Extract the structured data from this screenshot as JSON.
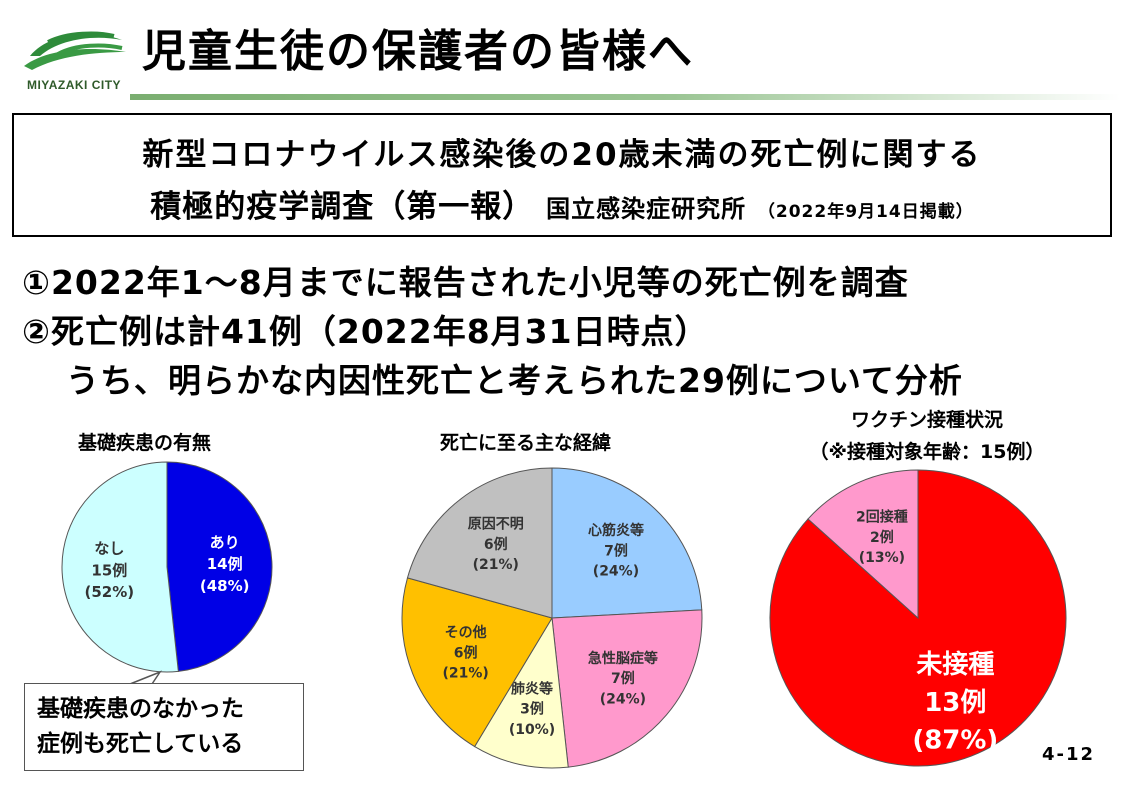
{
  "header": {
    "logo_text": "MIYAZAKI CITY",
    "title": "児童生徒の保護者の皆様へ"
  },
  "source_box": {
    "line1": "新型コロナウイルス感染後の20歳未満の死亡例に関する",
    "line2_main": "積極的疫学調査（第一報）",
    "line2_org": "国立感染症研究所",
    "line2_date": "（2022年9月14日掲載）"
  },
  "bullets": {
    "b1": "①2022年1～8月までに報告された小児等の死亡例を調査",
    "b2": "②死亡例は計41例（2022年8月31日時点）",
    "b3": "うち、明らかな内因性死亡と考えられた29例について分析"
  },
  "callout": {
    "line1": "基礎疾患のなかった",
    "line2": "症例も死亡している"
  },
  "page_number": "4-12",
  "chart_data": [
    {
      "type": "pie",
      "title": "基礎疾患の有無",
      "start": "top",
      "slices": [
        {
          "label": "あり",
          "count": "14例",
          "pct": "(48%)",
          "value": 14,
          "color": "#0000e6",
          "text_color": "#ffffff"
        },
        {
          "label": "なし",
          "count": "15例",
          "pct": "(52%)",
          "value": 15,
          "color": "#ccffff",
          "text_color": "#333333"
        }
      ]
    },
    {
      "type": "pie",
      "title": "死亡に至る主な経緯",
      "start": "top",
      "slices": [
        {
          "label": "心筋炎等",
          "count": "7例",
          "pct": "(24%)",
          "value": 7,
          "color": "#99ccff",
          "text_color": "#333333"
        },
        {
          "label": "急性脳症等",
          "count": "7例",
          "pct": "(24%)",
          "value": 7,
          "color": "#ff99cc",
          "text_color": "#333333"
        },
        {
          "label": "肺炎等",
          "count": "3例",
          "pct": "(10%)",
          "value": 3,
          "color": "#ffffcc",
          "text_color": "#333333"
        },
        {
          "label": "その他",
          "count": "6例",
          "pct": "(21%)",
          "value": 6,
          "color": "#ffc000",
          "text_color": "#333333"
        },
        {
          "label": "原因不明",
          "count": "6例",
          "pct": "(21%)",
          "value": 6,
          "color": "#c0c0c0",
          "text_color": "#333333"
        }
      ]
    },
    {
      "type": "pie",
      "title": "ワクチン接種状況",
      "subtitle": "（※接種対象年齢：15例）",
      "start": "top",
      "slices": [
        {
          "label": "未接種",
          "count": "13例",
          "pct": "(87%)",
          "value": 13,
          "color": "#ff0000",
          "text_color": "#ffffff"
        },
        {
          "label": "2回接種",
          "count": "2例",
          "pct": "(13%)",
          "value": 2,
          "color": "#ff99cc",
          "text_color": "#333333"
        }
      ]
    }
  ]
}
